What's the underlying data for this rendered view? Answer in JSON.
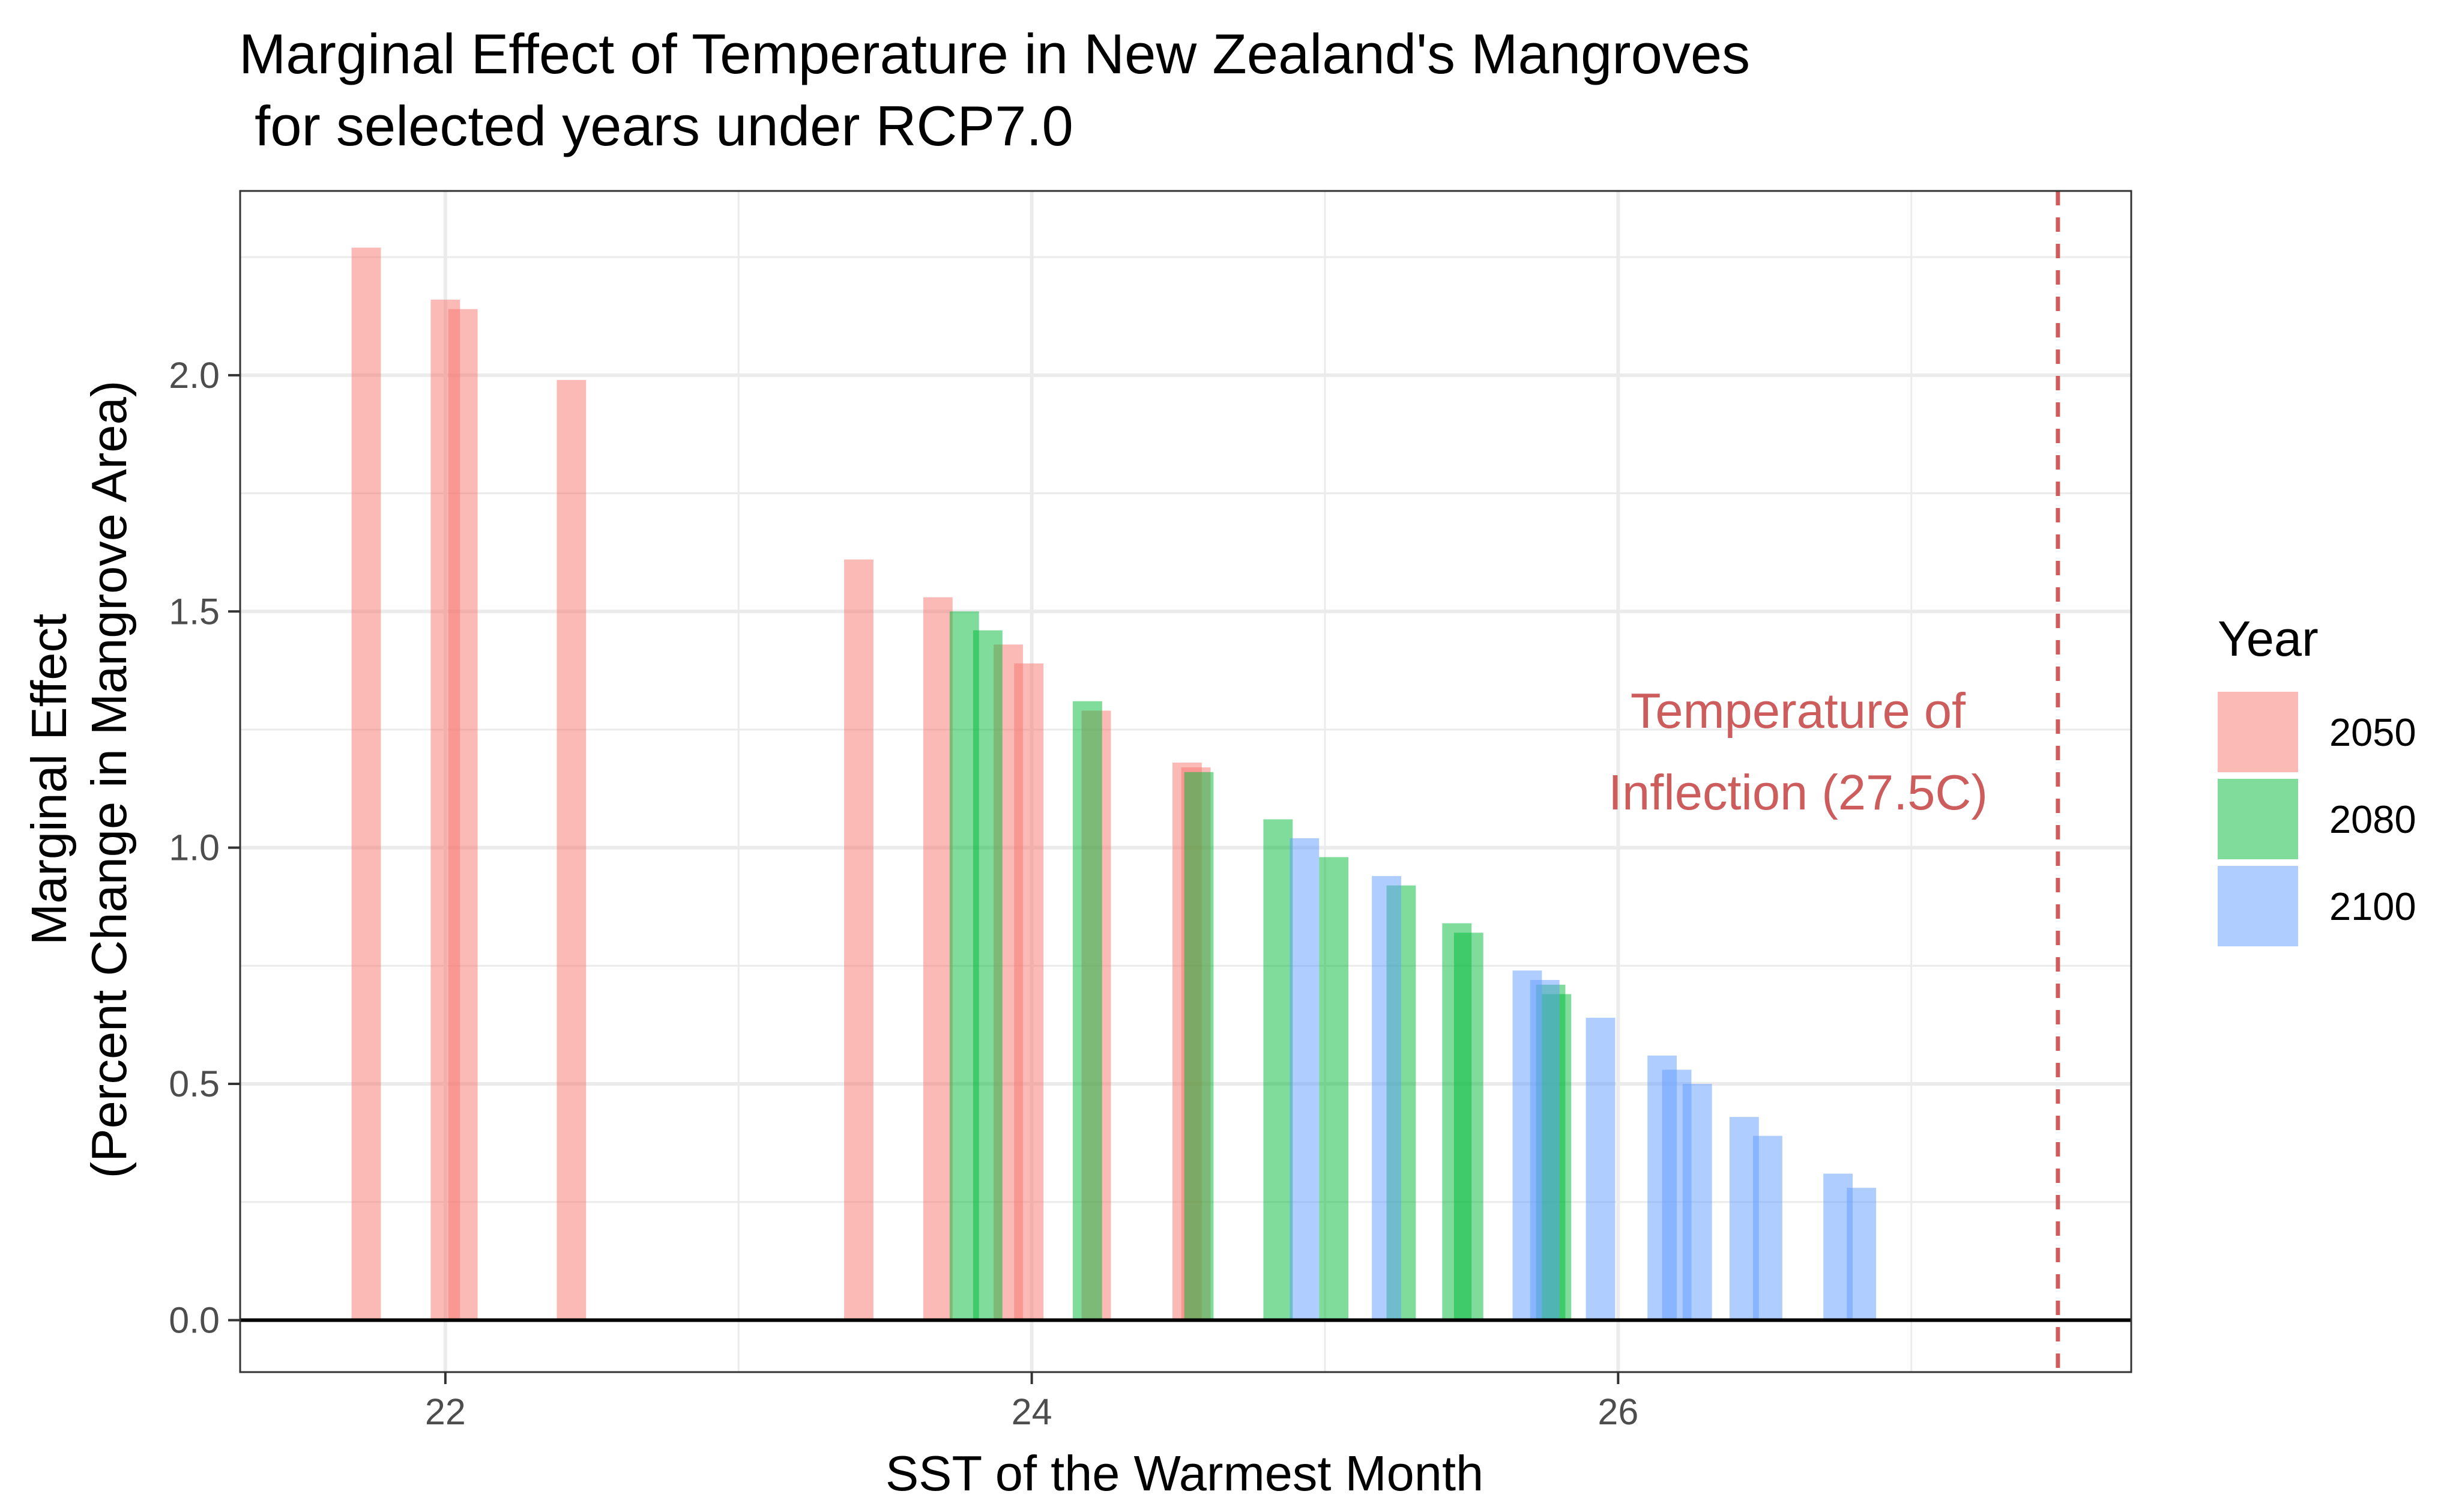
{
  "chart_data": {
    "type": "bar",
    "title": "Marginal Effect of Temperature in New Zealand's Mangroves",
    "subtitle": " for selected years under RCP7.0",
    "xlabel": "SST of the Warmest Month",
    "ylabel_line1": "Marginal Effect",
    "ylabel_line2": "(Percent Change in Mangrove Area)",
    "xlim": [
      21.3,
      27.75
    ],
    "ylim": [
      -0.11,
      2.39
    ],
    "x_ticks": [
      22,
      24,
      26
    ],
    "x_tick_labels": [
      "22",
      "24",
      "26"
    ],
    "y_ticks": [
      0.0,
      0.5,
      1.0,
      1.5,
      2.0
    ],
    "y_tick_labels": [
      "0.0",
      "0.5",
      "1.0",
      "1.5",
      "2.0"
    ],
    "bar_width": 0.1,
    "grid": true,
    "legend": {
      "title": "Year",
      "position": "right"
    },
    "series": [
      {
        "name": "2050",
        "color": "#f8766d",
        "points": [
          {
            "x": 21.73,
            "y": 2.27
          },
          {
            "x": 22.0,
            "y": 2.16
          },
          {
            "x": 22.06,
            "y": 2.14
          },
          {
            "x": 22.43,
            "y": 1.99
          },
          {
            "x": 23.41,
            "y": 1.61
          },
          {
            "x": 23.68,
            "y": 1.53
          },
          {
            "x": 23.92,
            "y": 1.43
          },
          {
            "x": 23.99,
            "y": 1.39
          },
          {
            "x": 24.22,
            "y": 1.29
          },
          {
            "x": 24.53,
            "y": 1.18
          },
          {
            "x": 24.56,
            "y": 1.17
          }
        ]
      },
      {
        "name": "2080",
        "color": "#00ba38",
        "points": [
          {
            "x": 23.77,
            "y": 1.5
          },
          {
            "x": 23.85,
            "y": 1.46
          },
          {
            "x": 24.19,
            "y": 1.31
          },
          {
            "x": 24.57,
            "y": 1.16
          },
          {
            "x": 24.84,
            "y": 1.06
          },
          {
            "x": 25.03,
            "y": 0.98
          },
          {
            "x": 25.26,
            "y": 0.92
          },
          {
            "x": 25.45,
            "y": 0.84
          },
          {
            "x": 25.49,
            "y": 0.82
          },
          {
            "x": 25.77,
            "y": 0.71
          },
          {
            "x": 25.79,
            "y": 0.69
          }
        ]
      },
      {
        "name": "2100",
        "color": "#619cff",
        "points": [
          {
            "x": 24.93,
            "y": 1.02
          },
          {
            "x": 25.21,
            "y": 0.94
          },
          {
            "x": 25.69,
            "y": 0.74
          },
          {
            "x": 25.75,
            "y": 0.72
          },
          {
            "x": 25.94,
            "y": 0.64
          },
          {
            "x": 26.15,
            "y": 0.56
          },
          {
            "x": 26.2,
            "y": 0.53
          },
          {
            "x": 26.27,
            "y": 0.5
          },
          {
            "x": 26.43,
            "y": 0.43
          },
          {
            "x": 26.51,
            "y": 0.39
          },
          {
            "x": 26.75,
            "y": 0.31
          },
          {
            "x": 26.83,
            "y": 0.28
          }
        ]
      }
    ],
    "reference_line": {
      "x": 27.5,
      "color": "#cd5c5c",
      "label_line1": "Temperature of",
      "label_line2": "Inflection (27.5C)"
    }
  }
}
